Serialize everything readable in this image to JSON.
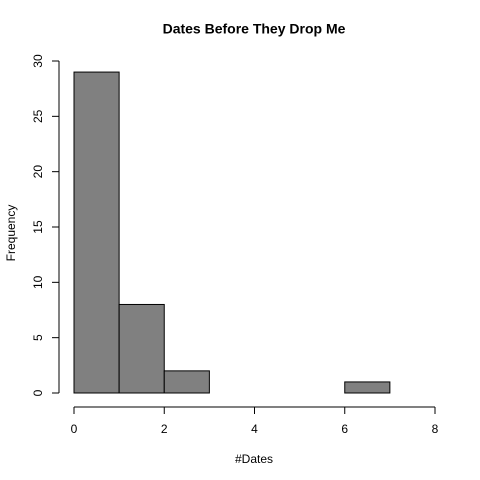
{
  "chart_data": {
    "type": "histogram",
    "title": "Dates Before They Drop Me",
    "x_label": "#Dates",
    "y_label": "Frequency",
    "bins": [
      0,
      1,
      2,
      3,
      4,
      5,
      6,
      7,
      8
    ],
    "values": [
      29,
      8,
      2,
      0,
      0,
      0,
      1,
      0
    ],
    "color": "#808080",
    "xlim": [
      0,
      8
    ],
    "xticks": [
      0,
      2,
      4,
      6,
      8
    ],
    "ylim": [
      0,
      30
    ],
    "yticks": [
      0,
      5,
      10,
      15,
      20,
      25,
      30
    ]
  }
}
